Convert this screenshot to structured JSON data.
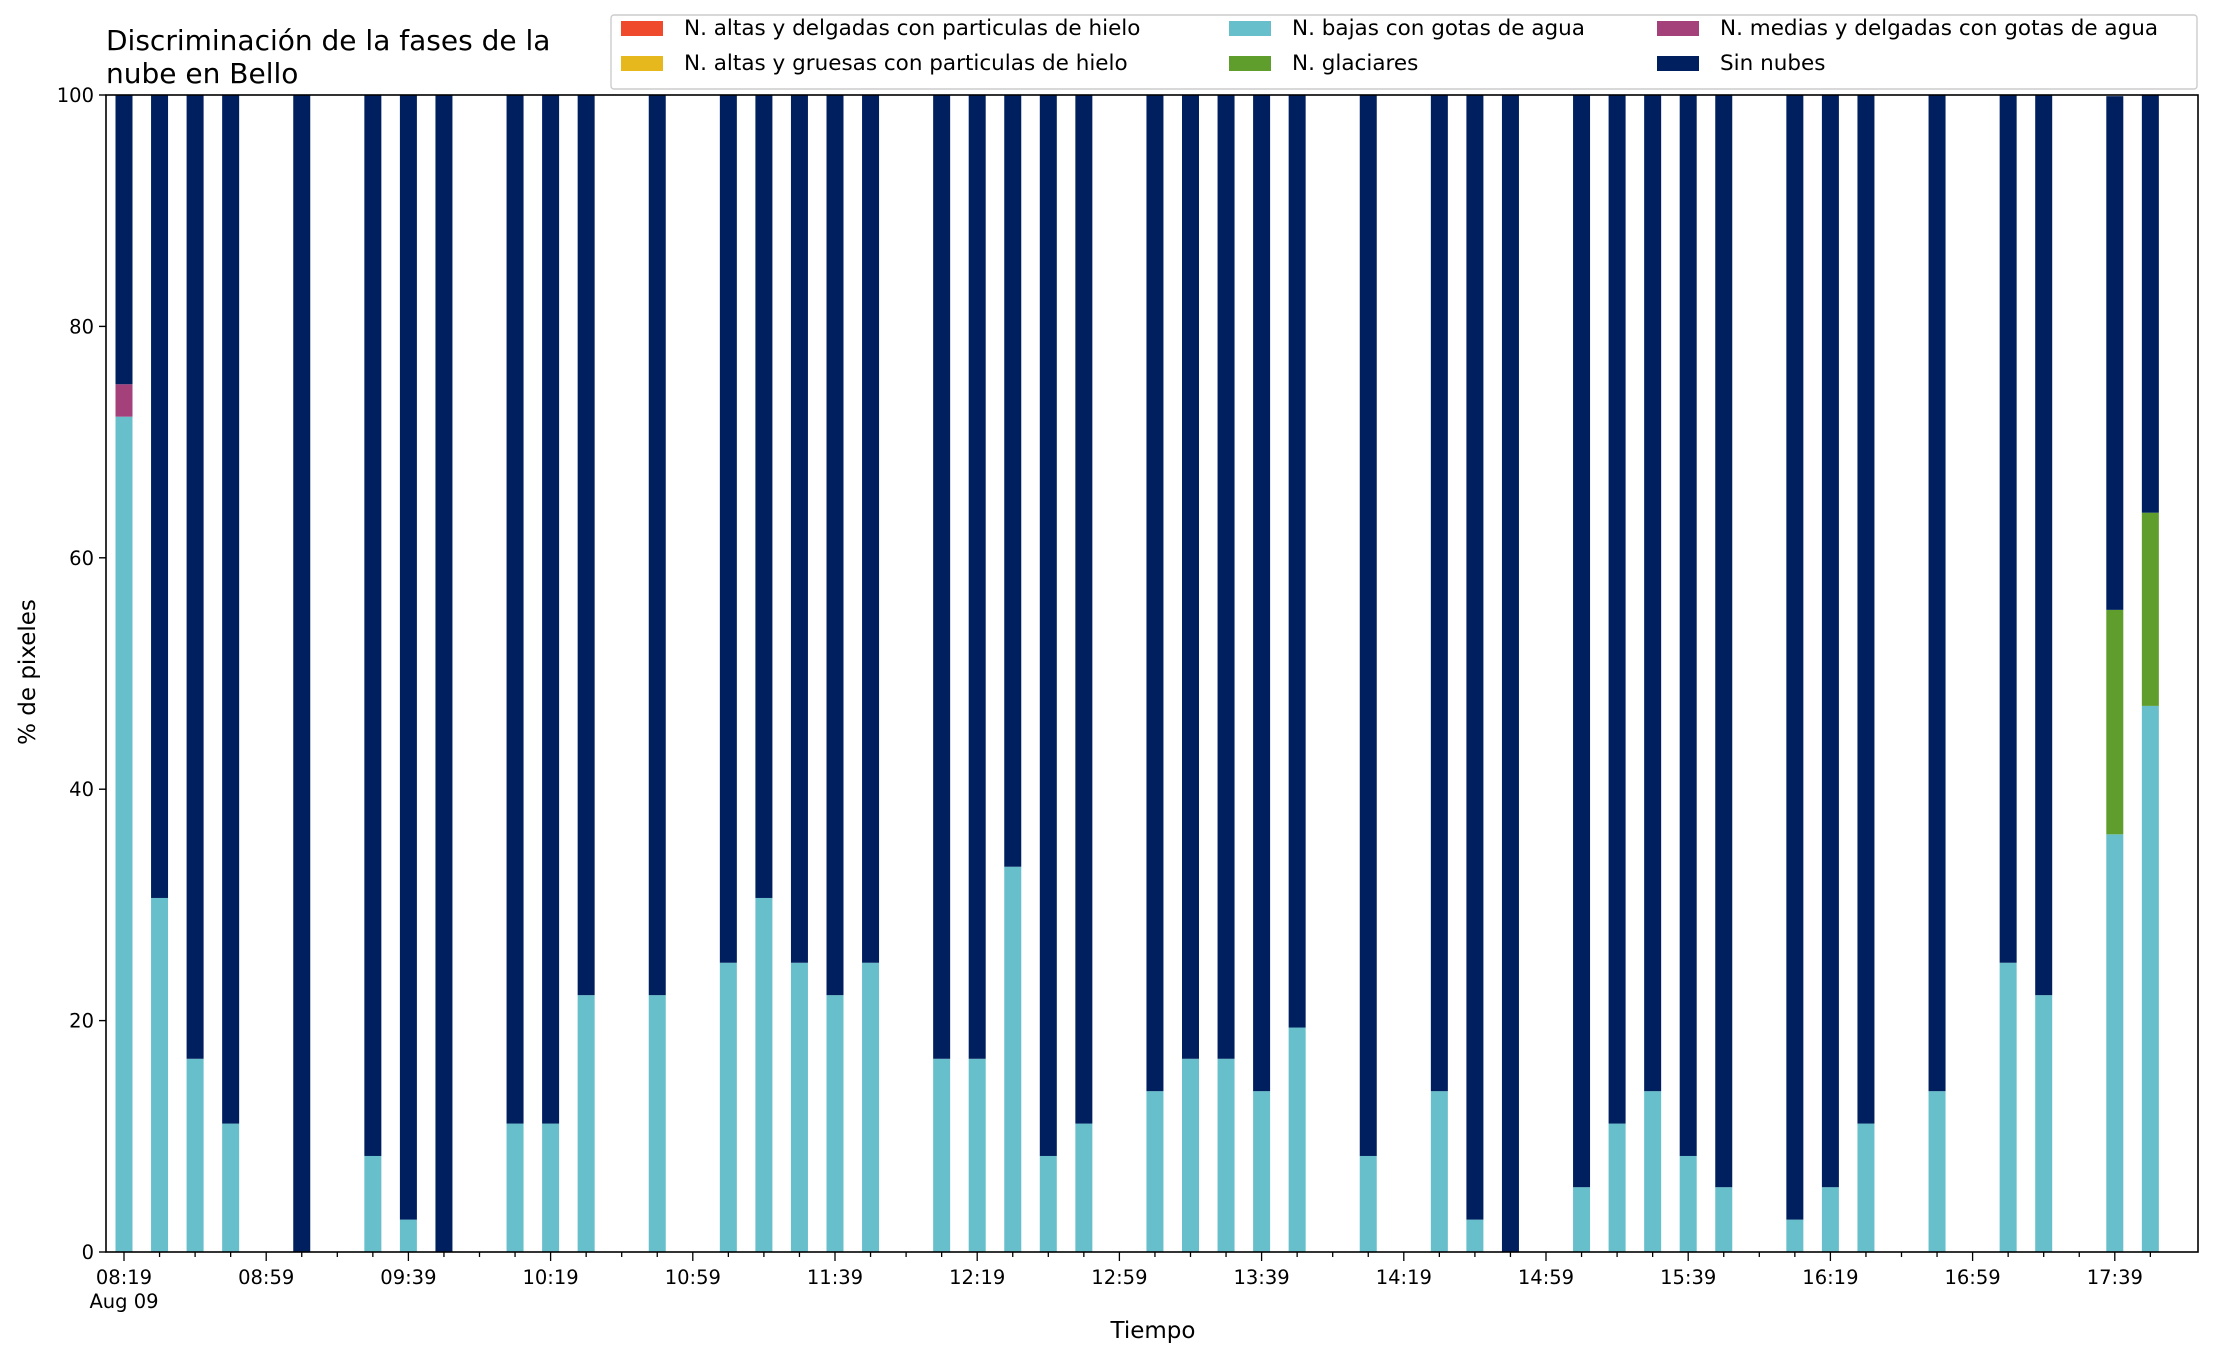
{
  "chart_data": {
    "type": "bar",
    "stacked": true,
    "title_lines": [
      "Discriminación de la fases de la",
      "nube en Bello"
    ],
    "xlabel": "Tiempo",
    "ylabel": "% de pixeles",
    "ylim": [
      0,
      100
    ],
    "yticks": [
      0,
      20,
      40,
      60,
      80,
      100
    ],
    "x_start": "08:19",
    "x_step_minutes": 10,
    "x_major_labels": [
      "08:19",
      "08:59",
      "09:39",
      "10:19",
      "10:59",
      "11:39",
      "12:19",
      "12:59",
      "13:39",
      "14:19",
      "14:59",
      "15:39",
      "16:19",
      "16:59",
      "17:39"
    ],
    "x_date_label": "Aug 09",
    "grid": false,
    "legend_placement": "top-right",
    "series": [
      {
        "name": "N. altas y delgadas con particulas de hielo",
        "color": "#f04a2d",
        "values": [
          0,
          0,
          0,
          0,
          0,
          0,
          0,
          0,
          0,
          0,
          0,
          0,
          0,
          0,
          0,
          0,
          0,
          0,
          0,
          0,
          0,
          0,
          0,
          0,
          0,
          0,
          0,
          0,
          0,
          0,
          0,
          0,
          0,
          0,
          0,
          0,
          0,
          0,
          0,
          0,
          0,
          0,
          0,
          0,
          0,
          0,
          0,
          0,
          0,
          0,
          0,
          0,
          0,
          0,
          0,
          0,
          0,
          0
        ]
      },
      {
        "name": "N. altas y gruesas con particulas de hielo",
        "color": "#e6b81e",
        "values": [
          0,
          0,
          0,
          0,
          0,
          0,
          0,
          0,
          0,
          0,
          0,
          0,
          0,
          0,
          0,
          0,
          0,
          0,
          0,
          0,
          0,
          0,
          0,
          0,
          0,
          0,
          0,
          0,
          0,
          0,
          0,
          0,
          0,
          0,
          0,
          0,
          0,
          0,
          0,
          0,
          0,
          0,
          0,
          0,
          0,
          0,
          0,
          0,
          0,
          0,
          0,
          0,
          0,
          0,
          0,
          0,
          0,
          0
        ]
      },
      {
        "name": "N. bajas con gotas de agua",
        "color": "#67bfcb",
        "values": [
          72.2,
          30.6,
          16.7,
          11.1,
          null,
          0,
          null,
          8.3,
          2.8,
          0,
          null,
          11.1,
          11.1,
          22.2,
          null,
          22.2,
          null,
          25,
          30.6,
          25,
          22.2,
          25,
          null,
          16.7,
          16.7,
          33.3,
          8.3,
          11.1,
          null,
          13.9,
          16.7,
          16.7,
          13.9,
          19.4,
          null,
          8.3,
          null,
          13.9,
          2.8,
          0,
          null,
          5.6,
          11.1,
          13.9,
          8.3,
          5.6,
          null,
          2.8,
          5.6,
          11.1,
          null,
          13.9,
          null,
          25,
          22.2,
          null,
          36.1,
          47.2
        ]
      },
      {
        "name": "N. glaciares",
        "color": "#5f9e2d",
        "values": [
          0,
          0,
          0,
          0,
          null,
          0,
          null,
          0,
          0,
          0,
          null,
          0,
          0,
          0,
          null,
          0,
          null,
          0,
          0,
          0,
          0,
          0,
          null,
          0,
          0,
          0,
          0,
          0,
          null,
          0,
          0,
          0,
          0,
          0,
          null,
          0,
          null,
          0,
          0,
          0,
          null,
          0,
          0,
          0,
          0,
          0,
          null,
          0,
          0,
          0,
          null,
          0,
          null,
          0,
          0,
          null,
          19.4,
          16.7
        ]
      },
      {
        "name": "N. medias y delgadas con gotas de agua",
        "color": "#a4417a",
        "values": [
          2.8,
          0,
          0,
          0,
          null,
          0,
          null,
          0,
          0,
          0,
          null,
          0,
          0,
          0,
          null,
          0,
          null,
          0,
          0,
          0,
          0,
          0,
          null,
          0,
          0,
          0,
          0,
          0,
          null,
          0,
          0,
          0,
          0,
          0,
          null,
          0,
          null,
          0,
          0,
          0,
          null,
          0,
          0,
          0,
          0,
          0,
          null,
          0,
          0,
          0,
          null,
          0,
          null,
          0,
          0,
          null,
          0,
          0
        ]
      },
      {
        "name": "Sin nubes",
        "color": "#001f5f",
        "values": [
          25,
          69.4,
          83.3,
          88.9,
          null,
          100,
          null,
          91.7,
          97.2,
          100,
          null,
          88.9,
          88.9,
          77.8,
          null,
          77.8,
          null,
          75,
          69.4,
          75,
          77.8,
          75,
          null,
          83.3,
          83.3,
          66.7,
          91.7,
          88.9,
          null,
          86.1,
          83.3,
          83.3,
          86.1,
          80.6,
          null,
          91.7,
          null,
          86.1,
          97.2,
          100,
          null,
          94.4,
          88.9,
          86.1,
          91.7,
          94.4,
          null,
          97.2,
          94.4,
          88.9,
          null,
          86.1,
          null,
          75,
          77.8,
          null,
          44.4,
          36.1
        ]
      }
    ]
  }
}
